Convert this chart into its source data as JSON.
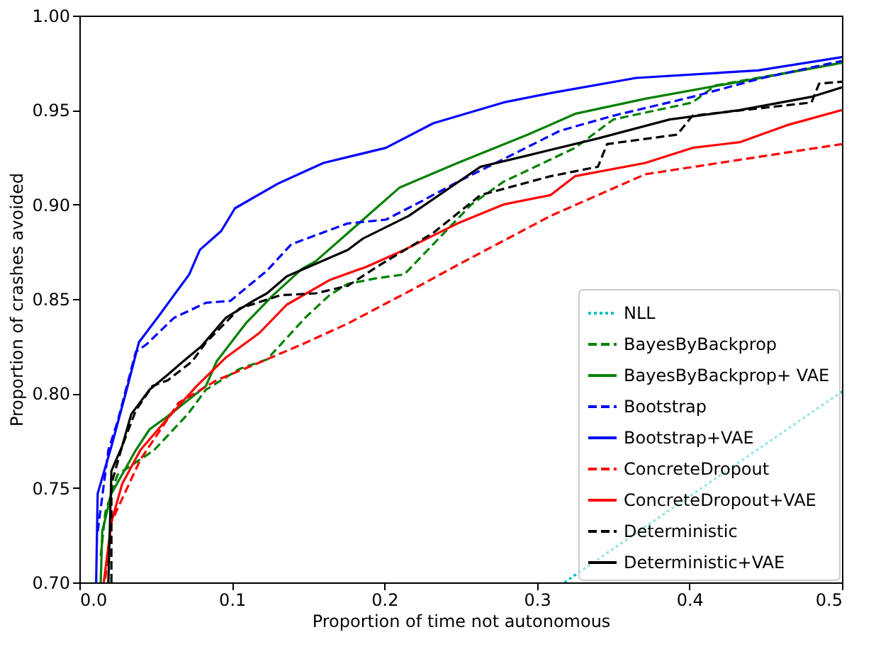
{
  "chart_data": {
    "type": "line",
    "xlabel": "Proportion of time not autonomous",
    "ylabel": "Proportion of crashes avoided",
    "xlim": [
      0,
      0.5
    ],
    "ylim": [
      0.7,
      1.0
    ],
    "xticks": [
      {
        "value": 0,
        "label": "0.0"
      },
      0.1,
      0.2,
      0.3,
      0.4,
      0.5
    ],
    "yticks": [
      {
        "value": 0.7,
        "label": "0.70"
      },
      0.75,
      {
        "value": 0.8,
        "label": "0.80"
      },
      0.85,
      {
        "value": 0.9,
        "label": "0.90"
      },
      0.95,
      {
        "value": 1.0,
        "label": "1.00"
      }
    ],
    "grid": false,
    "legend": "bottom right",
    "marker": "none",
    "series": [
      {
        "name": "NLL",
        "color": "#00bfbf",
        "line_style": "dotted",
        "x": [
          0.318,
          0.5
        ],
        "values": [
          0.7,
          0.801
        ]
      },
      {
        "name": "BayesByBackprop",
        "color": "#008000",
        "line_style": "dashed",
        "x": [
          0.014,
          0.017,
          0.025,
          0.049,
          0.071,
          0.083,
          0.105,
          0.123,
          0.148,
          0.164,
          0.176,
          0.195,
          0.213,
          0.238,
          0.257,
          0.278,
          0.325,
          0.35,
          0.402,
          0.417,
          0.5
        ],
        "values": [
          0.714,
          0.737,
          0.757,
          0.77,
          0.789,
          0.802,
          0.813,
          0.818,
          0.84,
          0.852,
          0.858,
          0.861,
          0.863,
          0.884,
          0.9,
          0.912,
          0.93,
          0.945,
          0.954,
          0.963,
          0.975
        ]
      },
      {
        "name": "BayesByBackprop+ VAE",
        "color": "#008000",
        "line_style": "solid",
        "x": [
          0.014,
          0.015,
          0.021,
          0.037,
          0.046,
          0.058,
          0.083,
          0.09,
          0.109,
          0.127,
          0.146,
          0.155,
          0.186,
          0.21,
          0.248,
          0.294,
          0.325,
          0.371,
          0.433,
          0.5
        ],
        "values": [
          0.7,
          0.727,
          0.747,
          0.77,
          0.781,
          0.788,
          0.804,
          0.817,
          0.837,
          0.852,
          0.866,
          0.87,
          0.892,
          0.909,
          0.922,
          0.937,
          0.948,
          0.956,
          0.965,
          0.975
        ]
      },
      {
        "name": "Bootstrap",
        "color": "#0000ff",
        "line_style": "dashed",
        "x": [
          0.012,
          0.019,
          0.025,
          0.037,
          0.044,
          0.062,
          0.083,
          0.099,
          0.123,
          0.139,
          0.176,
          0.201,
          0.225,
          0.248,
          0.278,
          0.315,
          0.35,
          0.402,
          0.448,
          0.5
        ],
        "values": [
          0.727,
          0.77,
          0.785,
          0.822,
          0.826,
          0.84,
          0.848,
          0.849,
          0.865,
          0.879,
          0.89,
          0.892,
          0.902,
          0.912,
          0.924,
          0.939,
          0.947,
          0.957,
          0.967,
          0.976
        ]
      },
      {
        "name": "Bootstrap+VAE",
        "color": "#0000ff",
        "line_style": "solid",
        "x": [
          0.011,
          0.012,
          0.021,
          0.031,
          0.039,
          0.053,
          0.062,
          0.072,
          0.079,
          0.093,
          0.102,
          0.13,
          0.16,
          0.201,
          0.232,
          0.278,
          0.309,
          0.365,
          0.445,
          0.5
        ],
        "values": [
          0.7,
          0.747,
          0.772,
          0.802,
          0.827,
          0.842,
          0.852,
          0.863,
          0.876,
          0.886,
          0.898,
          0.911,
          0.922,
          0.93,
          0.943,
          0.954,
          0.959,
          0.967,
          0.971,
          0.978
        ]
      },
      {
        "name": "ConcreteDropout",
        "color": "#ff0000",
        "line_style": "dashed",
        "x": [
          0.017,
          0.021,
          0.04,
          0.065,
          0.09,
          0.114,
          0.146,
          0.176,
          0.223,
          0.248,
          0.309,
          0.371,
          0.5
        ],
        "values": [
          0.702,
          0.732,
          0.765,
          0.795,
          0.807,
          0.815,
          0.826,
          0.837,
          0.857,
          0.868,
          0.894,
          0.916,
          0.932
        ]
      },
      {
        "name": "ConcreteDropout+VAE",
        "color": "#ff0000",
        "line_style": "solid",
        "x": [
          0.016,
          0.021,
          0.028,
          0.04,
          0.058,
          0.077,
          0.096,
          0.118,
          0.136,
          0.164,
          0.188,
          0.213,
          0.248,
          0.278,
          0.309,
          0.325,
          0.371,
          0.402,
          0.433,
          0.464,
          0.5
        ],
        "values": [
          0.7,
          0.732,
          0.752,
          0.77,
          0.787,
          0.804,
          0.819,
          0.832,
          0.847,
          0.86,
          0.867,
          0.876,
          0.89,
          0.9,
          0.905,
          0.915,
          0.922,
          0.93,
          0.933,
          0.942,
          0.95
        ]
      },
      {
        "name": "Deterministic",
        "color": "#000000",
        "line_style": "dashed",
        "x": [
          0.021,
          0.021,
          0.028,
          0.037,
          0.048,
          0.058,
          0.074,
          0.083,
          0.105,
          0.132,
          0.155,
          0.176,
          0.195,
          0.232,
          0.263,
          0.309,
          0.34,
          0.346,
          0.392,
          0.402,
          0.48,
          0.485,
          0.5
        ],
        "values": [
          0.7,
          0.752,
          0.772,
          0.791,
          0.804,
          0.807,
          0.817,
          0.827,
          0.845,
          0.852,
          0.853,
          0.857,
          0.867,
          0.885,
          0.905,
          0.915,
          0.92,
          0.932,
          0.937,
          0.947,
          0.954,
          0.964,
          0.965
        ]
      },
      {
        "name": "Deterministic+VAE",
        "color": "#000000",
        "line_style": "solid",
        "x": [
          0.019,
          0.021,
          0.028,
          0.034,
          0.046,
          0.058,
          0.071,
          0.08,
          0.096,
          0.114,
          0.123,
          0.136,
          0.176,
          0.186,
          0.216,
          0.263,
          0.294,
          0.34,
          0.387,
          0.433,
          0.48,
          0.5
        ],
        "values": [
          0.7,
          0.759,
          0.772,
          0.789,
          0.802,
          0.81,
          0.819,
          0.825,
          0.84,
          0.849,
          0.853,
          0.862,
          0.876,
          0.882,
          0.894,
          0.92,
          0.926,
          0.935,
          0.945,
          0.95,
          0.957,
          0.962
        ]
      }
    ]
  }
}
